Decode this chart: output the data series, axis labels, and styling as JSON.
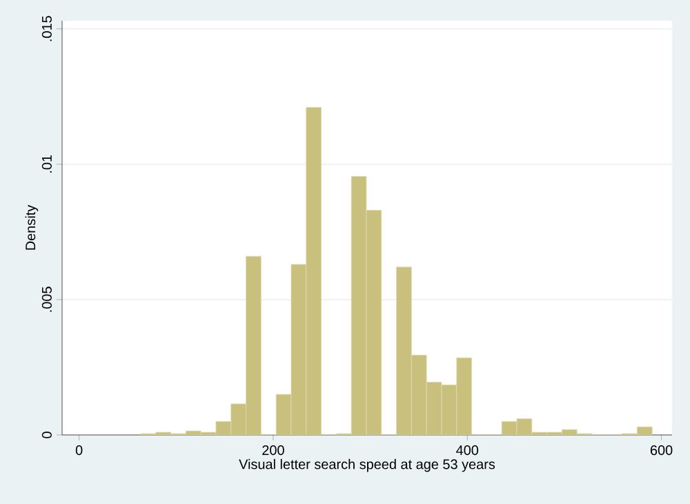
{
  "chart_data": {
    "type": "histogram",
    "xlabel": "Visual letter search speed at age 53 years",
    "ylabel": "Density",
    "bins": [
      63.5,
      79,
      94.5,
      110,
      125.5,
      141,
      156.5,
      172,
      187.5,
      203,
      218.5,
      234,
      249.5,
      265,
      280.5,
      296,
      311.5,
      327,
      342.5,
      358,
      373.5,
      389,
      404.5,
      420,
      435.5,
      451,
      466.5,
      482,
      497.5,
      513,
      528.5,
      544,
      559.5,
      575,
      590.5
    ],
    "values": [
      5e-05,
      0.0001,
      5e-05,
      0.00015,
      0.0001,
      0.0005,
      0.00115,
      0.0066,
      0,
      0.0015,
      0.0063,
      0.0121,
      0,
      5e-05,
      0.00955,
      0.0083,
      0,
      0.0062,
      0.00295,
      0.00195,
      0.00185,
      0.00285,
      0,
      0,
      0.0005,
      0.0006,
      0.0001,
      0.0001,
      0.0002,
      5e-05,
      0,
      0,
      5e-05,
      0.0003
    ],
    "color": "#c9c07e",
    "xlim": [
      -17.5,
      611
    ],
    "ylim": [
      0,
      0.0153
    ],
    "xticks": [
      0,
      200,
      400,
      600
    ],
    "yticks": [
      0,
      {
        "value": 0.005,
        "label": ".005"
      },
      {
        "value": 0.01,
        "label": ".01"
      },
      {
        "value": 0.015,
        "label": ".015"
      }
    ],
    "grid": "y"
  }
}
